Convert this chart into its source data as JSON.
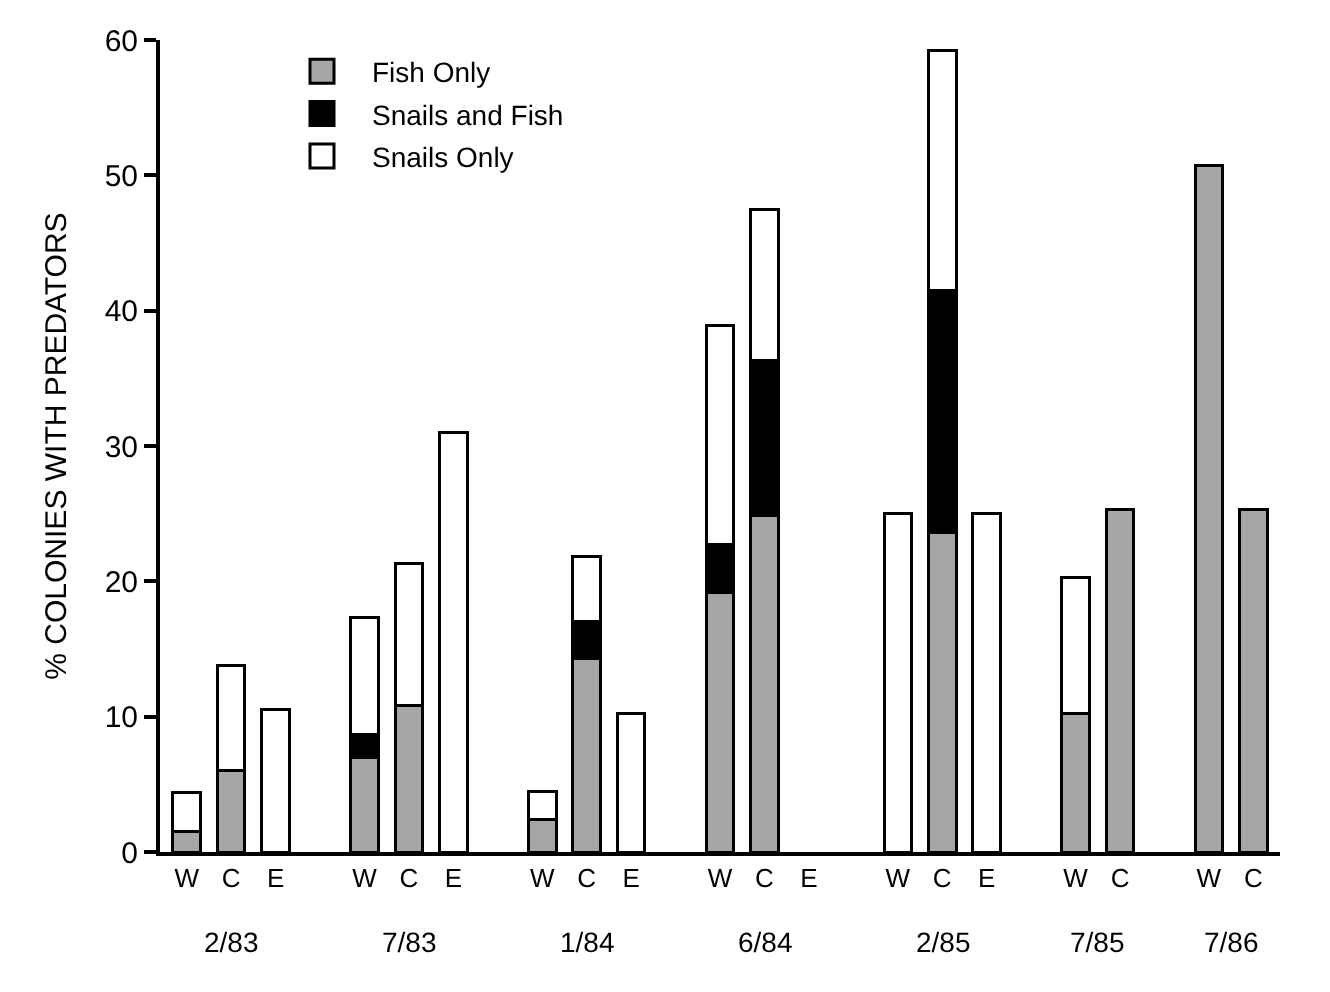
{
  "chart_data": {
    "type": "bar",
    "stacked": true,
    "ylabel": "% COLONIES WITH PREDATORS",
    "categories": [
      "W",
      "C",
      "E",
      null,
      "W",
      "C",
      "E",
      null,
      "W",
      "C",
      "E",
      null,
      "W",
      "C",
      "E",
      null,
      "W",
      "C",
      "E",
      null,
      "W",
      "C",
      null,
      "W",
      "C"
    ],
    "series": [
      {
        "name": "Fish Only",
        "color": "#a6a6a6",
        "values": [
          1.5,
          6,
          null,
          null,
          7,
          10.8,
          null,
          null,
          2.4,
          14.3,
          null,
          null,
          19.2,
          24.9,
          null,
          null,
          null,
          23.6,
          null,
          null,
          10.2,
          25.3,
          null,
          50.7,
          25.3
        ]
      },
      {
        "name": "Snails and Fish",
        "color": "#000000",
        "values": [
          null,
          null,
          null,
          null,
          1.7,
          null,
          null,
          null,
          null,
          2.7,
          null,
          null,
          3.5,
          11.4,
          null,
          null,
          null,
          17.9,
          null,
          null,
          null,
          null,
          null,
          null,
          null
        ]
      },
      {
        "name": "Snails Only",
        "color": "#ffffff",
        "values": [
          2.9,
          7.8,
          10.5,
          null,
          8.6,
          10.5,
          31,
          null,
          2.1,
          4.8,
          10.2,
          null,
          16.2,
          11.2,
          null,
          null,
          25,
          17.7,
          25,
          null,
          10.1,
          null,
          null,
          null,
          null
        ]
      }
    ],
    "annotations": [
      "2/83",
      "7/83",
      "1/84",
      "6/84",
      "2/85",
      "7/85",
      "7/86"
    ],
    "ylim": [
      0,
      60
    ],
    "yticks": [
      0,
      10,
      20,
      30,
      40,
      50,
      60
    ],
    "legend": "top left"
  }
}
